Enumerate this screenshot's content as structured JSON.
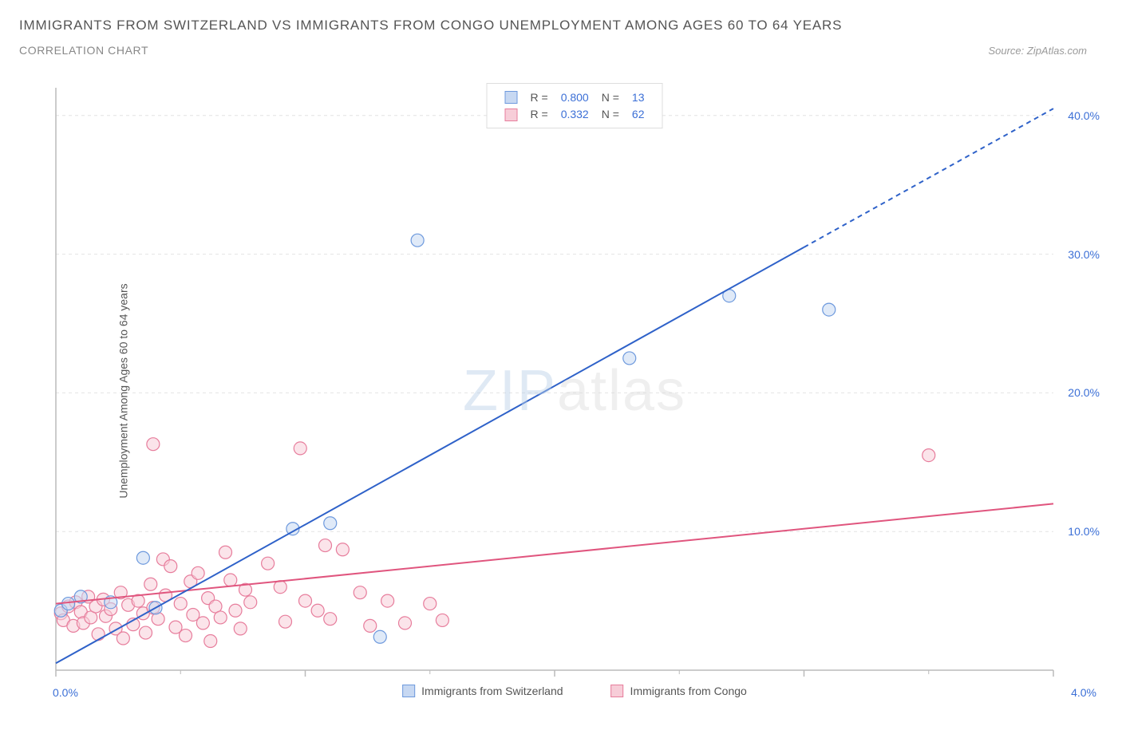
{
  "header": {
    "title": "IMMIGRANTS FROM SWITZERLAND VS IMMIGRANTS FROM CONGO UNEMPLOYMENT AMONG AGES 60 TO 64 YEARS",
    "subtitle": "CORRELATION CHART",
    "source": "Source: ZipAtlas.com"
  },
  "chart": {
    "type": "scatter",
    "y_axis_label": "Unemployment Among Ages 60 to 64 years",
    "watermark_prefix": "ZIP",
    "watermark_suffix": "atlas",
    "plot_bg": "#ffffff",
    "grid_color": "#e4e4e4",
    "axis_color": "#bbbbbb",
    "x_range": [
      0,
      4.0
    ],
    "y_range": [
      0,
      42
    ],
    "x_ticks": [
      0,
      1,
      2,
      3,
      4
    ],
    "x_minor_ticks": [
      0.5,
      1.5,
      2.5,
      3.5
    ],
    "y_ticks": [
      10,
      20,
      30,
      40
    ],
    "y_tick_labels": [
      "10.0%",
      "20.0%",
      "30.0%",
      "40.0%"
    ],
    "x_origin_label": "0.0%",
    "x_max_label": "4.0%",
    "series": {
      "switzerland": {
        "label": "Immigrants from Switzerland",
        "fill": "#c7d8f2",
        "stroke": "#6d99dd",
        "line_color": "#2f62c9",
        "r_value": "0.800",
        "n_value": "13",
        "trend": {
          "x1": 0,
          "y1": 0.5,
          "x2": 4.0,
          "y2": 40.5,
          "dash_from_x": 3.0
        },
        "points": [
          [
            0.02,
            4.3
          ],
          [
            0.05,
            4.8
          ],
          [
            0.1,
            5.3
          ],
          [
            0.22,
            4.9
          ],
          [
            0.35,
            8.1
          ],
          [
            0.4,
            4.5
          ],
          [
            0.95,
            10.2
          ],
          [
            1.1,
            10.6
          ],
          [
            1.3,
            2.4
          ],
          [
            1.45,
            31.0
          ],
          [
            2.3,
            22.5
          ],
          [
            2.7,
            27.0
          ],
          [
            3.1,
            26.0
          ]
        ]
      },
      "congo": {
        "label": "Immigrants from Congo",
        "fill": "#f7cdd8",
        "stroke": "#e77d9c",
        "line_color": "#e0557e",
        "r_value": "0.332",
        "n_value": "62",
        "trend": {
          "x1": 0,
          "y1": 4.8,
          "x2": 4.0,
          "y2": 12.0
        },
        "points": [
          [
            0.02,
            4.1
          ],
          [
            0.03,
            3.6
          ],
          [
            0.05,
            4.6
          ],
          [
            0.07,
            3.2
          ],
          [
            0.08,
            4.9
          ],
          [
            0.1,
            4.2
          ],
          [
            0.11,
            3.4
          ],
          [
            0.13,
            5.3
          ],
          [
            0.14,
            3.8
          ],
          [
            0.16,
            4.6
          ],
          [
            0.17,
            2.6
          ],
          [
            0.19,
            5.1
          ],
          [
            0.2,
            3.9
          ],
          [
            0.22,
            4.4
          ],
          [
            0.24,
            3.0
          ],
          [
            0.26,
            5.6
          ],
          [
            0.27,
            2.3
          ],
          [
            0.29,
            4.7
          ],
          [
            0.31,
            3.3
          ],
          [
            0.33,
            5.0
          ],
          [
            0.35,
            4.1
          ],
          [
            0.36,
            2.7
          ],
          [
            0.38,
            6.2
          ],
          [
            0.39,
            4.5
          ],
          [
            0.41,
            3.7
          ],
          [
            0.43,
            8.0
          ],
          [
            0.44,
            5.4
          ],
          [
            0.46,
            7.5
          ],
          [
            0.48,
            3.1
          ],
          [
            0.39,
            16.3
          ],
          [
            0.5,
            4.8
          ],
          [
            0.52,
            2.5
          ],
          [
            0.54,
            6.4
          ],
          [
            0.55,
            4.0
          ],
          [
            0.57,
            7.0
          ],
          [
            0.59,
            3.4
          ],
          [
            0.61,
            5.2
          ],
          [
            0.62,
            2.1
          ],
          [
            0.64,
            4.6
          ],
          [
            0.66,
            3.8
          ],
          [
            0.68,
            8.5
          ],
          [
            0.7,
            6.5
          ],
          [
            0.72,
            4.3
          ],
          [
            0.74,
            3.0
          ],
          [
            0.76,
            5.8
          ],
          [
            0.78,
            4.9
          ],
          [
            0.85,
            7.7
          ],
          [
            0.9,
            6.0
          ],
          [
            0.92,
            3.5
          ],
          [
            0.98,
            16.0
          ],
          [
            1.0,
            5.0
          ],
          [
            1.05,
            4.3
          ],
          [
            1.08,
            9.0
          ],
          [
            1.1,
            3.7
          ],
          [
            1.15,
            8.7
          ],
          [
            1.22,
            5.6
          ],
          [
            1.26,
            3.2
          ],
          [
            1.33,
            5.0
          ],
          [
            1.4,
            3.4
          ],
          [
            1.5,
            4.8
          ],
          [
            1.55,
            3.6
          ],
          [
            3.5,
            15.5
          ]
        ]
      }
    },
    "legend_labels": {
      "R": "R =",
      "N": "N ="
    },
    "marker_radius": 8,
    "marker_opacity": 0.55,
    "line_width": 2
  }
}
